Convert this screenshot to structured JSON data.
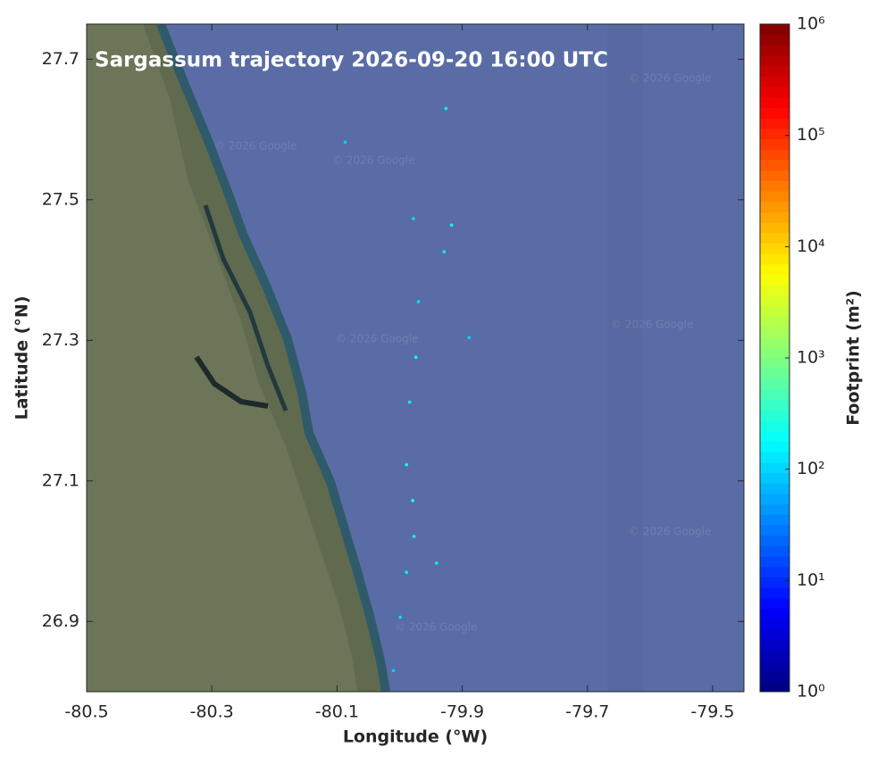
{
  "chart_data": {
    "type": "scatter",
    "title": "Sargassum trajectory 2026-09-20 16:00 UTC",
    "xlabel": "Longitude (°W)",
    "ylabel": "Latitude (°N)",
    "xlim": [
      -80.5,
      -79.45
    ],
    "ylim": [
      26.8,
      27.75
    ],
    "xticks": [
      -80.5,
      -80.3,
      -80.1,
      -79.9,
      -79.7,
      -79.5
    ],
    "yticks": [
      26.9,
      27.1,
      27.3,
      27.5,
      27.7
    ],
    "x": [
      -79.926,
      -79.917,
      -79.929,
      -79.97,
      -79.974,
      -79.984,
      -79.989,
      -79.979,
      -79.977,
      -79.989,
      -79.999,
      -80.01,
      -79.941,
      -79.889,
      -80.087,
      -79.978
    ],
    "y": [
      27.63,
      27.464,
      27.426,
      27.355,
      27.276,
      27.212,
      27.123,
      27.072,
      27.021,
      26.97,
      26.906,
      26.83,
      26.983,
      27.304,
      27.582,
      27.473
    ],
    "values": [
      150,
      200,
      150,
      120,
      200,
      150,
      250,
      300,
      200,
      150,
      120,
      100,
      150,
      100,
      100,
      120
    ],
    "colorbar": {
      "label": "Footprint (m²)",
      "scale": "log",
      "colormap": "jet",
      "lim": [
        1,
        1000000
      ],
      "ticks": [
        {
          "value": 1,
          "label": "10⁰"
        },
        {
          "value": 10,
          "label": "10¹"
        },
        {
          "value": 100,
          "label": "10²"
        },
        {
          "value": 1000,
          "label": "10³"
        },
        {
          "value": 10000,
          "label": "10⁴"
        },
        {
          "value": 100000,
          "label": "10⁵"
        },
        {
          "value": 1000000,
          "label": "10⁶"
        }
      ]
    },
    "watermark": "© 2026 Google"
  }
}
